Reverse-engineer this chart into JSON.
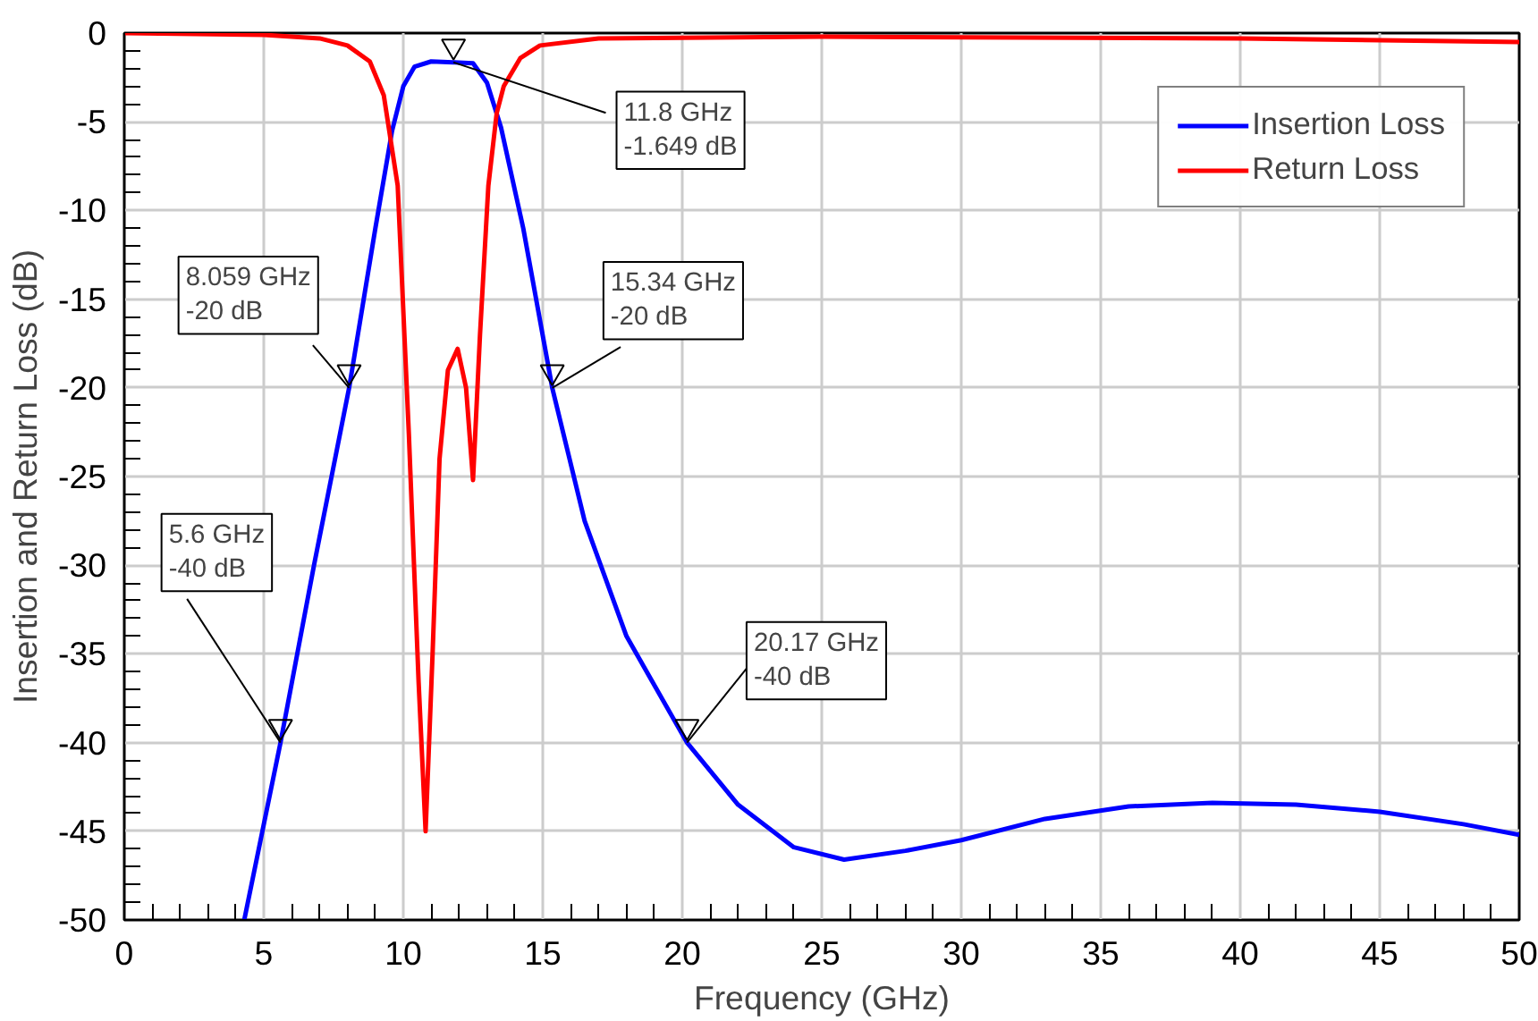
{
  "chart_data": {
    "type": "line",
    "xlabel": "Frequency (GHz)",
    "ylabel": "Insertion and Return Loss (dB)",
    "xlim": [
      0,
      50
    ],
    "ylim": [
      -50,
      0
    ],
    "xticks": [
      0,
      5,
      10,
      15,
      20,
      25,
      30,
      35,
      40,
      45,
      50
    ],
    "yticks": [
      -50,
      -45,
      -40,
      -35,
      -30,
      -25,
      -20,
      -15,
      -10,
      -5,
      0
    ],
    "grid": true,
    "legend": "top right",
    "series": [
      {
        "name": "Insertion Loss",
        "color": "#0000ff",
        "x": [
          4.3,
          5.6,
          6.8,
          8.059,
          9.0,
          9.6,
          10.0,
          10.4,
          11.0,
          11.8,
          12.5,
          13.0,
          13.5,
          14.3,
          15.34,
          16.5,
          18.0,
          20.17,
          22.0,
          24.0,
          25.8,
          28.0,
          30.0,
          33.0,
          36.0,
          39.0,
          42.0,
          45.0,
          48.0,
          50.0
        ],
        "values": [
          -50,
          -40,
          -30,
          -20,
          -11,
          -5.5,
          -3,
          -1.9,
          -1.6,
          -1.649,
          -1.7,
          -2.8,
          -5.3,
          -11,
          -20,
          -27.5,
          -34,
          -40,
          -43.5,
          -45.9,
          -46.6,
          -46.1,
          -45.5,
          -44.3,
          -43.6,
          -43.4,
          -43.5,
          -43.9,
          -44.6,
          -45.2
        ]
      },
      {
        "name": "Return Loss",
        "color": "#ff0000",
        "x": [
          0,
          5,
          7,
          8,
          8.8,
          9.3,
          9.8,
          10.2,
          10.55,
          10.8,
          11.05,
          11.3,
          11.6,
          11.95,
          12.25,
          12.5,
          12.75,
          13.05,
          13.35,
          13.6,
          14.2,
          14.9,
          17,
          25,
          40,
          50
        ],
        "values": [
          0,
          -0.1,
          -0.3,
          -0.7,
          -1.6,
          -3.5,
          -8.6,
          -22.6,
          -36.6,
          -45,
          -35,
          -24,
          -19,
          -17.8,
          -20,
          -25.2,
          -17,
          -8.6,
          -4.5,
          -3,
          -1.4,
          -0.7,
          -0.3,
          -0.2,
          -0.3,
          -0.5
        ]
      }
    ],
    "annotations": [
      {
        "text": "11.8 GHz\n-1.649 dB",
        "x": 11.8,
        "y": -1.649
      },
      {
        "text": "8.059 GHz\n-20 dB",
        "x": 8.059,
        "y": -20
      },
      {
        "text": "15.34 GHz\n-20 dB",
        "x": 15.34,
        "y": -20
      },
      {
        "text": "5.6 GHz\n-40 dB",
        "x": 5.6,
        "y": -40
      },
      {
        "text": "20.17 GHz\n-40 dB",
        "x": 20.17,
        "y": -40
      }
    ]
  }
}
